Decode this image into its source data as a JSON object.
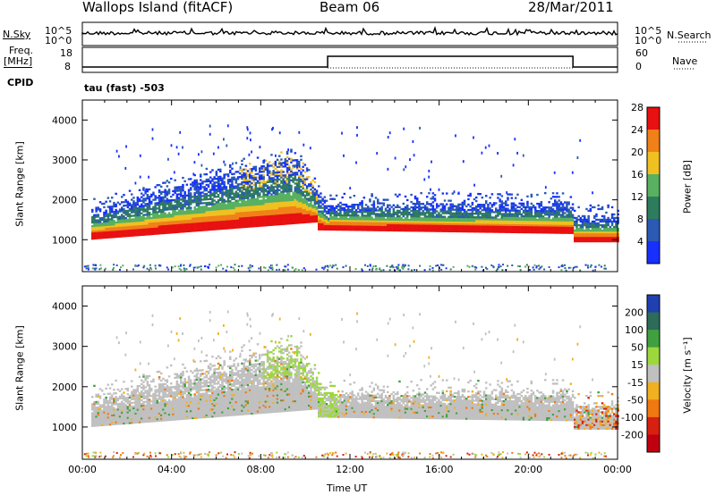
{
  "header": {
    "station": "Wallops Island (fitACF)",
    "beam": "Beam 06",
    "date": "28/Mar/2011"
  },
  "summary": {
    "nsky_label": "N.Sky",
    "nsearch_label": "N.Search",
    "freq_label_1": "Freq.",
    "freq_label_2": "[MHz]",
    "nave_label": "Nave",
    "cpid_label": "CPID",
    "cpid_value": "tau (fast) -503",
    "noise_ticks_left": [
      "10^5",
      "10^0"
    ],
    "noise_ticks_right": [
      "10^5",
      "10^0"
    ],
    "freq_ticks": [
      "18",
      "8"
    ],
    "nave_ticks": [
      "60",
      "0"
    ]
  },
  "chart_data": [
    {
      "type": "heatmap",
      "name": "power",
      "ylabel": "Slant Range [km]",
      "ylim": [
        200,
        4500
      ],
      "yticks": [
        1000,
        2000,
        3000,
        4000
      ],
      "xlim": [
        0,
        24
      ],
      "colorbar": {
        "label": "Power [dB]",
        "ticks": [
          4,
          8,
          12,
          16,
          20,
          24,
          28
        ],
        "colors": [
          "#1830ff",
          "#2a5ab4",
          "#2e7c5e",
          "#58b060",
          "#f0c020",
          "#f08018",
          "#e81010"
        ]
      },
      "ground_scatter_range_km": [
        1000,
        1700
      ],
      "echo_upper_km": [
        1900,
        2200,
        2600,
        3000,
        1700,
        1700,
        1900,
        1400
      ]
    },
    {
      "type": "heatmap",
      "name": "velocity",
      "ylabel": "Slant Range [km]",
      "ylim": [
        200,
        4500
      ],
      "yticks": [
        1000,
        2000,
        3000,
        4000
      ],
      "xlim": [
        0,
        24
      ],
      "xticks": [
        "00:00",
        "04:00",
        "08:00",
        "12:00",
        "16:00",
        "20:00",
        "00:00"
      ],
      "xlabel": "Time UT",
      "colorbar": {
        "label": "Velocity [m s⁻¹]",
        "ticks": [
          "200",
          "100",
          "50",
          "15",
          "-15",
          "-50",
          "-100",
          "-200"
        ],
        "colors": [
          "#2040b0",
          "#2c6c58",
          "#40a040",
          "#9cd83c",
          "#c0c0c0",
          "#f0b020",
          "#f07810",
          "#d82010",
          "#c00010"
        ]
      }
    }
  ]
}
